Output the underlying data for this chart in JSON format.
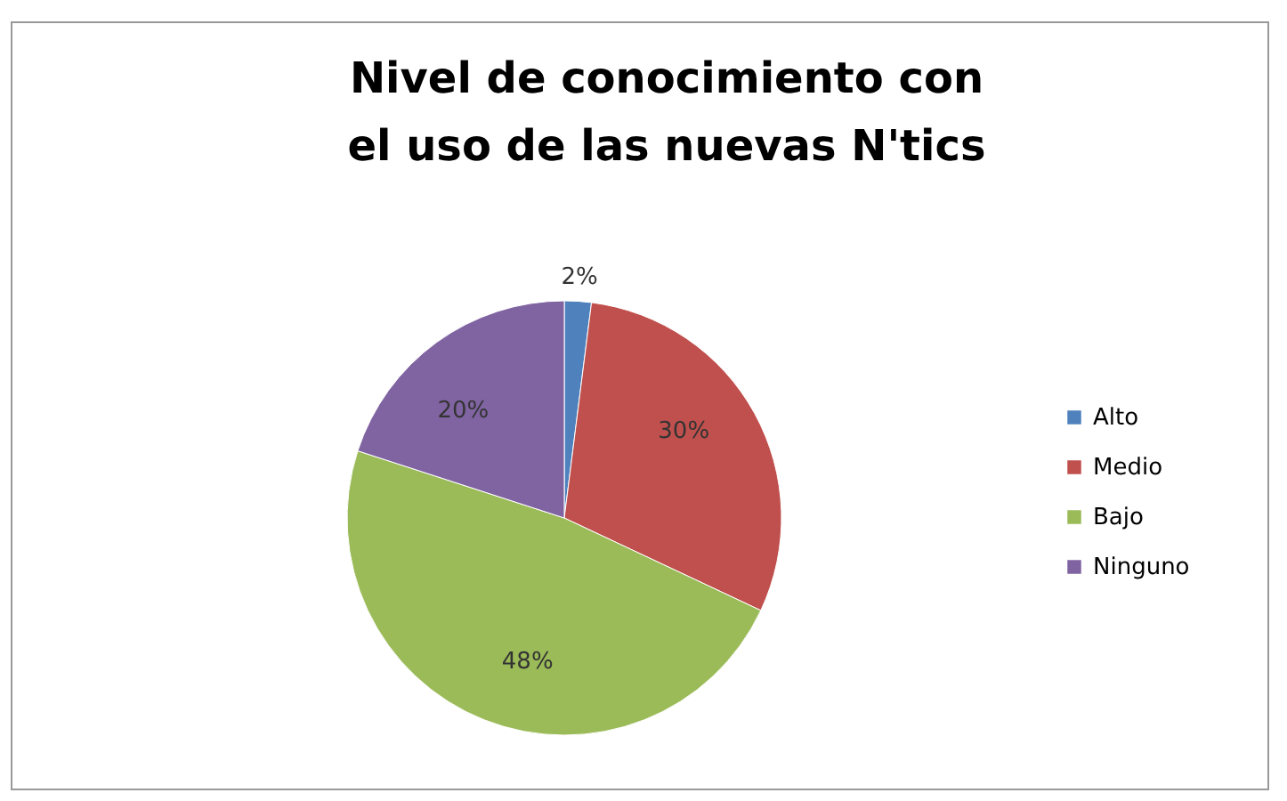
{
  "chart_data": {
    "type": "pie",
    "title": "Nivel de conocimiento con el uso de las nuevas N'tics",
    "categories": [
      "Alto",
      "Medio",
      "Bajo",
      "Ninguno"
    ],
    "values": [
      2,
      30,
      48,
      20
    ],
    "colors": [
      "#4f81bd",
      "#c0504d",
      "#9bbb59",
      "#8064a2"
    ],
    "value_labels": [
      "2%",
      "30%",
      "48%",
      "20%"
    ],
    "legend": "right"
  }
}
